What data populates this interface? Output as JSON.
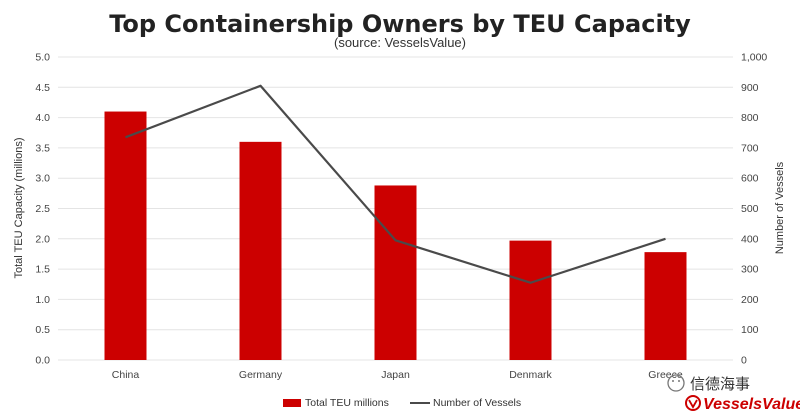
{
  "chart_data": {
    "type": "bar",
    "title": "Top Containership Owners by TEU Capacity",
    "subtitle": "(source: VesselsValue)",
    "categories": [
      "China",
      "Germany",
      "Japan",
      "Denmark",
      "Greece"
    ],
    "series": [
      {
        "name": "Total TEU millions",
        "type": "bar",
        "axis": "left",
        "color": "#cc0000",
        "values": [
          4.1,
          3.6,
          2.88,
          1.97,
          1.78
        ]
      },
      {
        "name": "Number of Vessels",
        "type": "line",
        "axis": "right",
        "color": "#4a4a4a",
        "values": [
          735,
          905,
          395,
          255,
          400
        ]
      }
    ],
    "ylabel": "Total TEU Capacity (millions)",
    "y2label": "Number of Vessels",
    "ylim": [
      0,
      5
    ],
    "y2lim": [
      0,
      1000
    ],
    "yticks": [
      "0.0",
      "0.5",
      "1.0",
      "1.5",
      "2.0",
      "2.5",
      "3.0",
      "3.5",
      "4.0",
      "4.5",
      "5.0"
    ],
    "y2ticks": [
      "0",
      "100",
      "200",
      "300",
      "400",
      "500",
      "600",
      "700",
      "800",
      "900",
      "1,000"
    ],
    "grid": true,
    "legend_position": "bottom-center"
  },
  "watermark": {
    "channel_name": "信德海事",
    "logo_text": "VesselsValue"
  },
  "colors": {
    "bar": "#cc0000",
    "line": "#4a4a4a",
    "logo": "#cc0000"
  }
}
